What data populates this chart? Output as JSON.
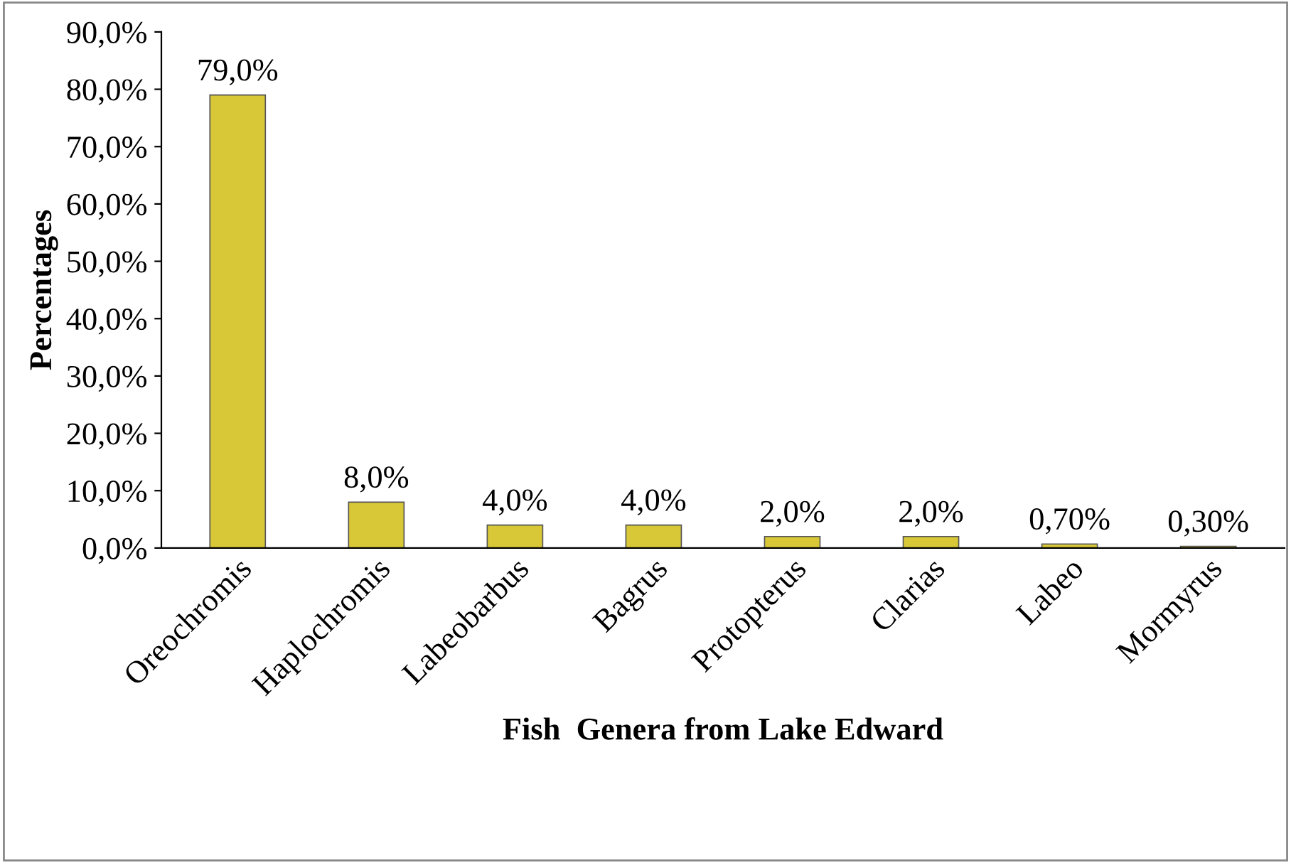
{
  "chart_data": {
    "type": "bar",
    "xlabel": "Fish  Genera from Lake Edward",
    "ylabel": "Percentages",
    "categories": [
      "Oreochromis",
      "Haplochromis",
      "Labeobarbus",
      "Bagrus",
      "Protopterus",
      "Clarias",
      "Labeo",
      "Mormyrus"
    ],
    "values": [
      79.0,
      8.0,
      4.0,
      4.0,
      2.0,
      2.0,
      0.7,
      0.3
    ],
    "value_labels": [
      "79,0%",
      "8,0%",
      "4,0%",
      "4,0%",
      "2,0%",
      "2,0%",
      "0,70%",
      "0,30%"
    ],
    "color": "#d8c838",
    "ylim": [
      0,
      90
    ],
    "yticks": [
      {
        "value": 0,
        "label": "0,0%"
      },
      {
        "value": 10,
        "label": "10,0%"
      },
      {
        "value": 20,
        "label": "20,0%"
      },
      {
        "value": 30,
        "label": "30,0%"
      },
      {
        "value": 40,
        "label": "40,0%"
      },
      {
        "value": 50,
        "label": "50,0%"
      },
      {
        "value": 60,
        "label": "60,0%"
      },
      {
        "value": 70,
        "label": "70,0%"
      },
      {
        "value": 80,
        "label": "80,0%"
      },
      {
        "value": 90,
        "label": "90,0%"
      }
    ],
    "grid": false,
    "legend": false
  }
}
